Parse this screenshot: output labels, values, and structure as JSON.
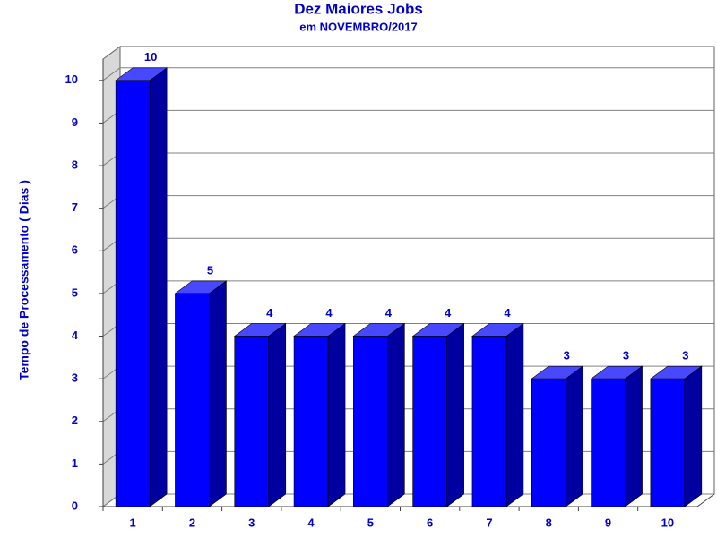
{
  "chart_data": {
    "type": "bar3d",
    "title": "Dez Maiores Jobs",
    "subtitle": "em NOVEMBRO/2017",
    "y_label": "Tempo de Processamento ( Dias )",
    "categories": [
      "1",
      "2",
      "3",
      "4",
      "5",
      "6",
      "7",
      "8",
      "9",
      "10"
    ],
    "values": [
      10,
      5,
      4,
      4,
      4,
      4,
      4,
      3,
      3,
      3
    ],
    "color": "#0000ff",
    "ylim": [
      0,
      10.5
    ],
    "yticks": [
      0,
      1,
      2,
      3,
      4,
      5,
      6,
      7,
      8,
      9,
      10
    ],
    "grid": true
  }
}
